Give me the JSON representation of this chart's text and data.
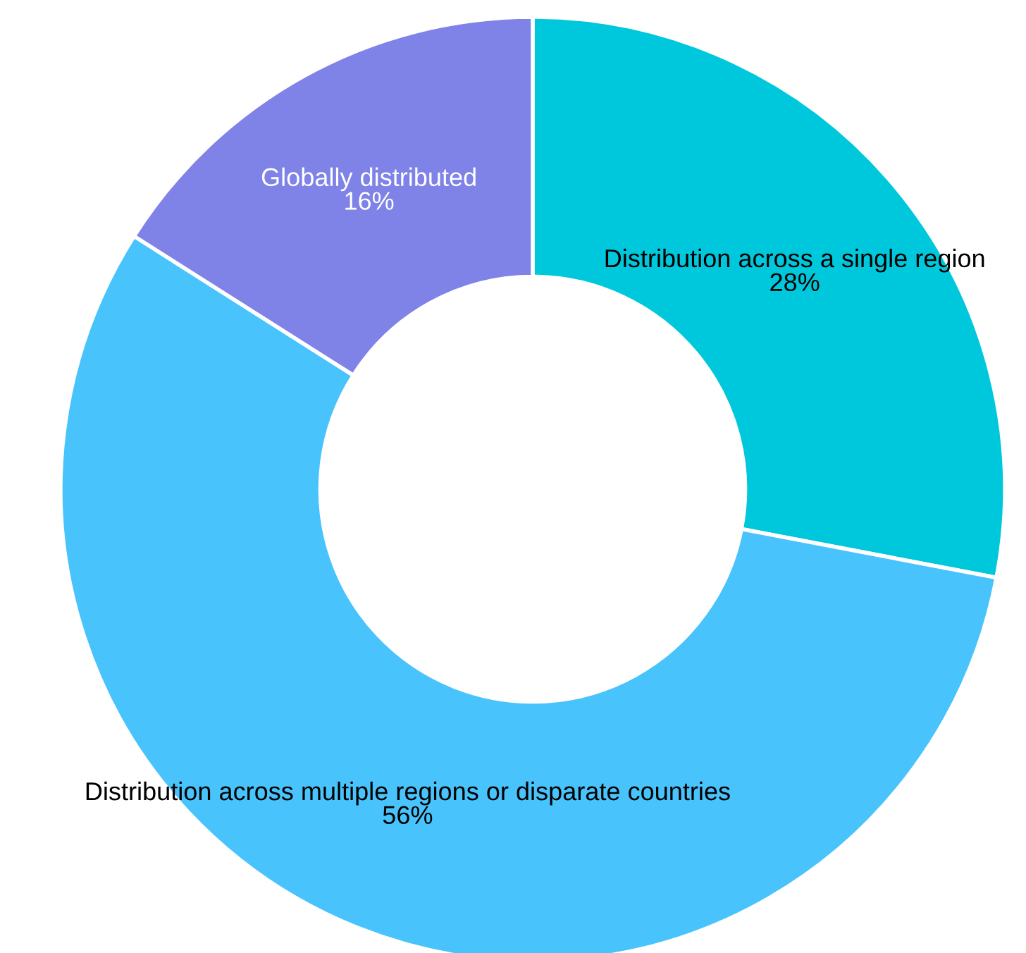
{
  "chart_data": {
    "type": "donut",
    "categories": [
      "Distribution across a single region",
      "Distribution across multiple regions or disparate countries",
      "Globally distributed"
    ],
    "values": [
      28,
      56,
      16
    ],
    "colors": [
      "#00c8dc",
      "#48c3fc",
      "#7f82e6"
    ],
    "value_labels": [
      "28%",
      "56%",
      "16%"
    ]
  }
}
